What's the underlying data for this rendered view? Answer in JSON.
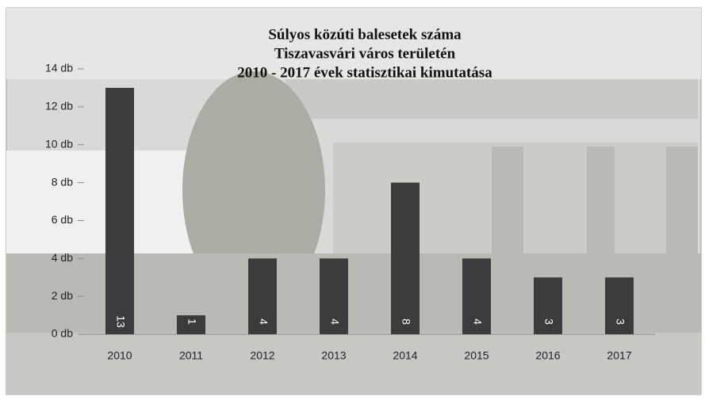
{
  "chart_data": {
    "type": "bar",
    "title": [
      "Súlyos közúti balesetek száma",
      "Tiszavasvári város területén",
      "2010 - 2017 évek statisztikai kimutatása"
    ],
    "categories": [
      "2010",
      "2011",
      "2012",
      "2013",
      "2014",
      "2015",
      "2016",
      "2017"
    ],
    "values": [
      13,
      1,
      4,
      4,
      8,
      4,
      3,
      3
    ],
    "color": "#3b3b3e",
    "ylim": [
      0,
      14
    ],
    "yticks": [
      {
        "value": 0,
        "label": "0 db"
      },
      {
        "value": 2,
        "label": "2 db"
      },
      {
        "value": 4,
        "label": "4 db"
      },
      {
        "value": 6,
        "label": "6 db"
      },
      {
        "value": 8,
        "label": "8 db"
      },
      {
        "value": 10,
        "label": "10 db"
      },
      {
        "value": 12,
        "label": "12 db"
      },
      {
        "value": 14,
        "label": "14 db"
      }
    ],
    "grid": false
  }
}
